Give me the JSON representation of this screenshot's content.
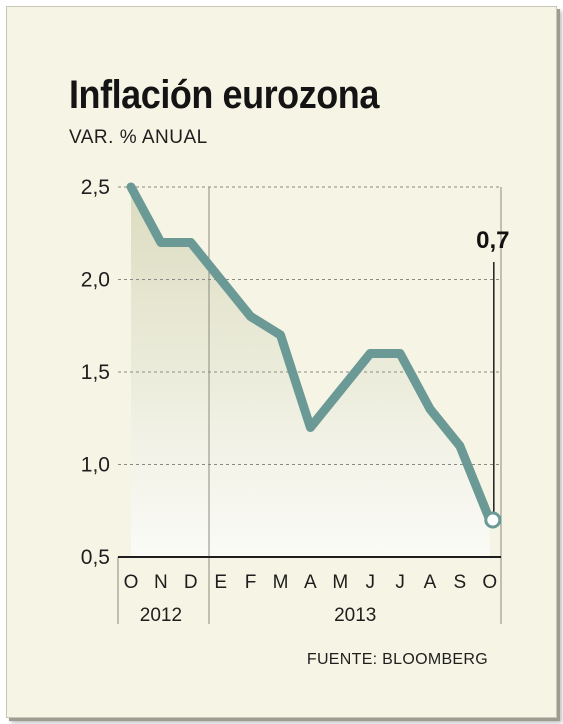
{
  "chart_data": {
    "type": "area",
    "title": "Inflación eurozona",
    "subtitle": "VAR. % ANUAL",
    "source": "FUENTE: BLOOMBERG",
    "categories": [
      "O",
      "N",
      "D",
      "E",
      "F",
      "M",
      "A",
      "M",
      "J",
      "J",
      "A",
      "S",
      "O"
    ],
    "year_groups": [
      {
        "label": "2012",
        "from": 0,
        "to": 2
      },
      {
        "label": "2013",
        "from": 3,
        "to": 12
      }
    ],
    "series": [
      {
        "values": [
          2.5,
          2.2,
          2.2,
          2.0,
          1.8,
          1.7,
          1.2,
          1.4,
          1.6,
          1.6,
          1.3,
          1.1,
          0.7
        ]
      }
    ],
    "yticks": [
      "2,5",
      "2,0",
      "1,5",
      "1,0",
      "0,5"
    ],
    "ytick_values": [
      2.5,
      2.0,
      1.5,
      1.0,
      0.5
    ],
    "ylim": [
      0.5,
      2.5
    ],
    "annotation": {
      "label": "0,7",
      "index": 12
    },
    "grid": true,
    "colors": {
      "line": "#6b9a96",
      "fill_top": "#dcdcc0",
      "fill_bottom": "#fbfbf7",
      "text": "#1e1e1e",
      "grid": "#8a8a80"
    }
  }
}
